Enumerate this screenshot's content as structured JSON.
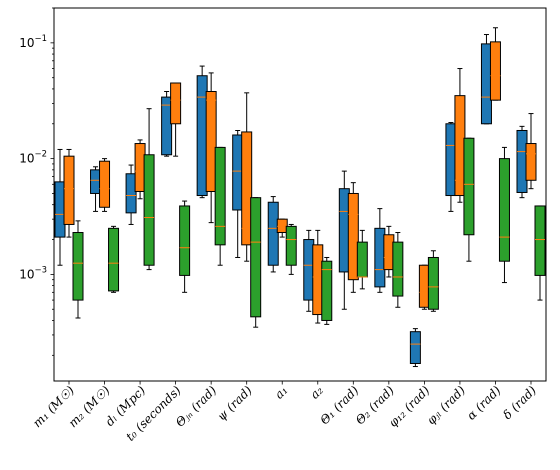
{
  "chart_data": {
    "type": "box",
    "y_scale": "log",
    "ylim": [
      0.00012,
      0.2
    ],
    "y_ticks": [
      {
        "value": 0.001,
        "base": "10",
        "exp": "−3"
      },
      {
        "value": 0.01,
        "base": "10",
        "exp": "−2"
      },
      {
        "value": 0.1,
        "base": "10",
        "exp": "−1"
      }
    ],
    "colors": [
      "#1f77b4",
      "#ff7f0e",
      "#2ca02c"
    ],
    "median_color": "#ff7f0e",
    "categories": [
      {
        "label": "m₁ (M☉)",
        "boxes": [
          {
            "lw": 0.0012,
            "q1": 0.0021,
            "med": 0.0033,
            "q3": 0.0063,
            "uw": 0.012
          },
          {
            "lw": 0.0021,
            "q1": 0.0027,
            "med": 0.0055,
            "q3": 0.0105,
            "uw": 0.012
          },
          {
            "lw": 0.00042,
            "q1": 0.0006,
            "med": 0.00125,
            "q3": 0.0023,
            "uw": 0.0029
          }
        ]
      },
      {
        "label": "m₂ (M☉)",
        "boxes": [
          {
            "lw": 0.0035,
            "q1": 0.005,
            "med": 0.0065,
            "q3": 0.008,
            "uw": 0.0085
          },
          {
            "lw": 0.0035,
            "q1": 0.0038,
            "med": 0.0055,
            "q3": 0.0095,
            "uw": 0.01
          },
          {
            "lw": 0.0007,
            "q1": 0.00072,
            "med": 0.00125,
            "q3": 0.0025,
            "uw": 0.0026
          }
        ]
      },
      {
        "label": "dₗ (Mpc)",
        "boxes": [
          {
            "lw": 0.0027,
            "q1": 0.0034,
            "med": 0.0048,
            "q3": 0.0074,
            "uw": 0.0088
          },
          {
            "lw": 0.0045,
            "q1": 0.0052,
            "med": 0.0078,
            "q3": 0.0135,
            "uw": 0.0145
          },
          {
            "lw": 0.0011,
            "q1": 0.0012,
            "med": 0.0031,
            "q3": 0.0108,
            "uw": 0.027
          }
        ]
      },
      {
        "label": "t₀ (seconds)",
        "boxes": [
          {
            "lw": 0.0105,
            "q1": 0.0108,
            "med": 0.029,
            "q3": 0.034,
            "uw": 0.038
          },
          {
            "lw": 0.0105,
            "q1": 0.02,
            "med": 0.032,
            "q3": 0.045,
            "uw": 0.045
          },
          {
            "lw": 0.0007,
            "q1": 0.00098,
            "med": 0.0017,
            "q3": 0.0039,
            "uw": 0.0043
          }
        ]
      },
      {
        "label": "Θⱼₙ (rad)",
        "boxes": [
          {
            "lw": 0.0046,
            "q1": 0.0048,
            "med": 0.034,
            "q3": 0.052,
            "uw": 0.063
          },
          {
            "lw": 0.0028,
            "q1": 0.0052,
            "med": 0.032,
            "q3": 0.038,
            "uw": 0.055
          },
          {
            "lw": 0.0012,
            "q1": 0.0018,
            "med": 0.0026,
            "q3": 0.0125,
            "uw": 0.0125
          }
        ]
      },
      {
        "label": "ψ (rad)",
        "boxes": [
          {
            "lw": 0.0014,
            "q1": 0.0036,
            "med": 0.0078,
            "q3": 0.016,
            "uw": 0.0175
          },
          {
            "lw": 0.0013,
            "q1": 0.0018,
            "med": 0.0025,
            "q3": 0.017,
            "uw": 0.037
          },
          {
            "lw": 0.00035,
            "q1": 0.00043,
            "med": 0.0019,
            "q3": 0.0046,
            "uw": 0.0046
          }
        ]
      },
      {
        "label": "a₁",
        "boxes": [
          {
            "lw": 0.00105,
            "q1": 0.0012,
            "med": 0.0025,
            "q3": 0.0042,
            "uw": 0.0047
          },
          {
            "lw": 0.0021,
            "q1": 0.0023,
            "med": 0.0026,
            "q3": 0.003,
            "uw": 0.003
          },
          {
            "lw": 0.001,
            "q1": 0.0012,
            "med": 0.002,
            "q3": 0.0026,
            "uw": 0.0027
          }
        ]
      },
      {
        "label": "a₂",
        "boxes": [
          {
            "lw": 0.00048,
            "q1": 0.0006,
            "med": 0.0012,
            "q3": 0.002,
            "uw": 0.0024
          },
          {
            "lw": 0.00038,
            "q1": 0.00045,
            "med": 0.00095,
            "q3": 0.0018,
            "uw": 0.0024
          },
          {
            "lw": 0.00037,
            "q1": 0.0004,
            "med": 0.0011,
            "q3": 0.0013,
            "uw": 0.0014
          }
        ]
      },
      {
        "label": "Θ₁ (rad)",
        "boxes": [
          {
            "lw": 0.0005,
            "q1": 0.00105,
            "med": 0.0035,
            "q3": 0.0055,
            "uw": 0.0078
          },
          {
            "lw": 0.0007,
            "q1": 0.0009,
            "med": 0.0033,
            "q3": 0.005,
            "uw": 0.0062
          },
          {
            "lw": 0.00075,
            "q1": 0.00095,
            "med": 0.00095,
            "q3": 0.0019,
            "uw": 0.0024
          }
        ]
      },
      {
        "label": "Θ₂ (rad)",
        "boxes": [
          {
            "lw": 0.0007,
            "q1": 0.00078,
            "med": 0.0011,
            "q3": 0.0025,
            "uw": 0.0037
          },
          {
            "lw": 0.00095,
            "q1": 0.0011,
            "med": 0.0014,
            "q3": 0.0022,
            "uw": 0.0026
          },
          {
            "lw": 0.00052,
            "q1": 0.00065,
            "med": 0.00095,
            "q3": 0.0019,
            "uw": 0.0023
          }
        ]
      },
      {
        "label": "φ₁₂ (rad)",
        "boxes": [
          {
            "lw": 0.00016,
            "q1": 0.00017,
            "med": 0.00025,
            "q3": 0.00032,
            "uw": 0.00034
          },
          {
            "lw": 0.0005,
            "q1": 0.00052,
            "med": 0.0007,
            "q3": 0.0012,
            "uw": 0.0012
          },
          {
            "lw": 0.00048,
            "q1": 0.0005,
            "med": 0.00078,
            "q3": 0.0014,
            "uw": 0.0016
          }
        ]
      },
      {
        "label": "φⱼₗ (rad)",
        "boxes": [
          {
            "lw": 0.0035,
            "q1": 0.0048,
            "med": 0.013,
            "q3": 0.02,
            "uw": 0.0205
          },
          {
            "lw": 0.0042,
            "q1": 0.0048,
            "med": 0.0065,
            "q3": 0.035,
            "uw": 0.06
          },
          {
            "lw": 0.0013,
            "q1": 0.0022,
            "med": 0.006,
            "q3": 0.015,
            "uw": 0.015
          }
        ]
      },
      {
        "label": "α (rad)",
        "boxes": [
          {
            "lw": 0.02,
            "q1": 0.02,
            "med": 0.034,
            "q3": 0.098,
            "uw": 0.118
          },
          {
            "lw": 0.032,
            "q1": 0.032,
            "med": 0.052,
            "q3": 0.102,
            "uw": 0.135
          },
          {
            "lw": 0.00085,
            "q1": 0.0013,
            "med": 0.0021,
            "q3": 0.01,
            "uw": 0.0125
          }
        ]
      },
      {
        "label": "δ (rad)",
        "boxes": [
          {
            "lw": 0.0046,
            "q1": 0.0051,
            "med": 0.0115,
            "q3": 0.0175,
            "uw": 0.019
          },
          {
            "lw": 0.0055,
            "q1": 0.0065,
            "med": 0.011,
            "q3": 0.0135,
            "uw": 0.0245
          },
          {
            "lw": 0.0006,
            "q1": 0.00098,
            "med": 0.002,
            "q3": 0.0039,
            "uw": 0.0039
          }
        ]
      }
    ]
  }
}
